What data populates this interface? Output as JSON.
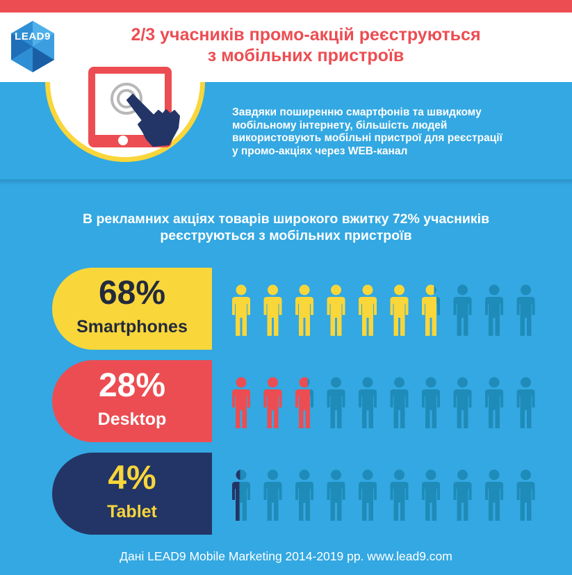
{
  "header": {
    "logo_text": "LEAD9",
    "title_line1": "2/3 учасників промо-акцій реєструються",
    "title_line2": "з мобільних пристроїв"
  },
  "intro": {
    "line1": "Завдяки поширенню смартфонів та швидкому",
    "line2": "мобільному інтернету, більшість людей",
    "line3": "використовують мобільні пристрої для реєстрації",
    "line4": "у промо-акціях через WEB-канал"
  },
  "subtitle": {
    "line1": "В рекламних акціях товарів широкого вжитку 72% учасників",
    "line2": "реєструються з мобільних пристроїв"
  },
  "stats": [
    {
      "percent": "68%",
      "label": "Smartphones",
      "share": 0.68,
      "color": "#f9d63a",
      "text_color": "#222a3c",
      "label_color": "#222a3c"
    },
    {
      "percent": "28%",
      "label": "Desktop",
      "share": 0.28,
      "color": "#ec4d52",
      "text_color": "#ffffff",
      "label_color": "#ffffff"
    },
    {
      "percent": "4%",
      "label": "Tablet",
      "share": 0.04,
      "color": "#233566",
      "text_color": "#f9d63a",
      "label_color": "#f9d63a"
    }
  ],
  "colors": {
    "background": "#33a8e2",
    "accent_red": "#ec4d52",
    "yellow": "#f9d63a",
    "navy": "#233566",
    "person_inactive": "#1f8bb8"
  },
  "footer": {
    "source": "Дані LEAD9 Mobile Marketing 2014-2019 рр. www.lead9.com"
  }
}
